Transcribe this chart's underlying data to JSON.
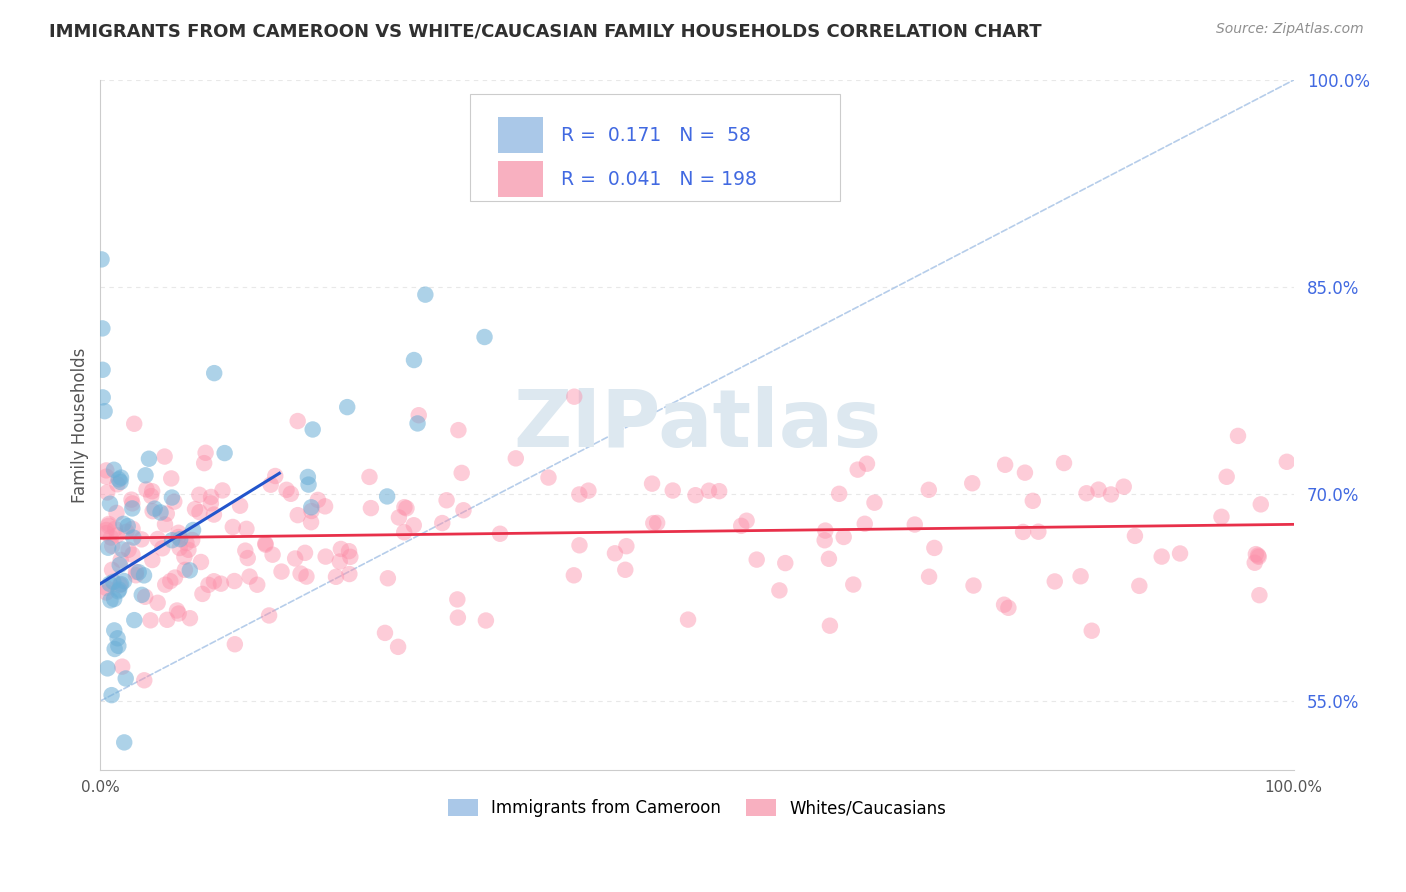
{
  "title": "IMMIGRANTS FROM CAMEROON VS WHITE/CAUCASIAN FAMILY HOUSEHOLDS CORRELATION CHART",
  "source_text": "Source: ZipAtlas.com",
  "ylabel": "Family Households",
  "legend_labels_bottom": [
    "Immigrants from Cameroon",
    "Whites/Caucasians"
  ],
  "xmin": 0.0,
  "xmax": 1.0,
  "ymin": 0.5,
  "ymax": 1.0,
  "ytick_positions": [
    0.55,
    0.7,
    0.85,
    1.0
  ],
  "ytick_labels": [
    "55.0%",
    "70.0%",
    "85.0%",
    "100.0%"
  ],
  "xtick_positions": [
    0.0,
    1.0
  ],
  "xtick_labels": [
    "0.0%",
    "100.0%"
  ],
  "watermark": "ZIPatlas",
  "blue_line_x": [
    0.0,
    0.15
  ],
  "blue_line_y": [
    0.635,
    0.715
  ],
  "pink_line_x": [
    0.0,
    1.0
  ],
  "pink_line_y": [
    0.668,
    0.678
  ],
  "dashed_line_x": [
    0.0,
    1.0
  ],
  "dashed_line_y": [
    0.55,
    1.0
  ],
  "scatter_blue_color": "#6baed6",
  "scatter_pink_color": "#fc8fa9",
  "line_blue_color": "#2255cc",
  "line_pink_color": "#e8304a",
  "dashed_line_color": "#aec8e8",
  "background_color": "#ffffff",
  "watermark_color": "#dde8f0",
  "title_color": "#303030",
  "source_color": "#909090",
  "legend_blue_color": "#aac8e8",
  "legend_pink_color": "#f8b0c0",
  "tick_color": "#4169e1",
  "grid_color": "#e8e8e8",
  "grid_dashes": [
    4,
    4
  ]
}
